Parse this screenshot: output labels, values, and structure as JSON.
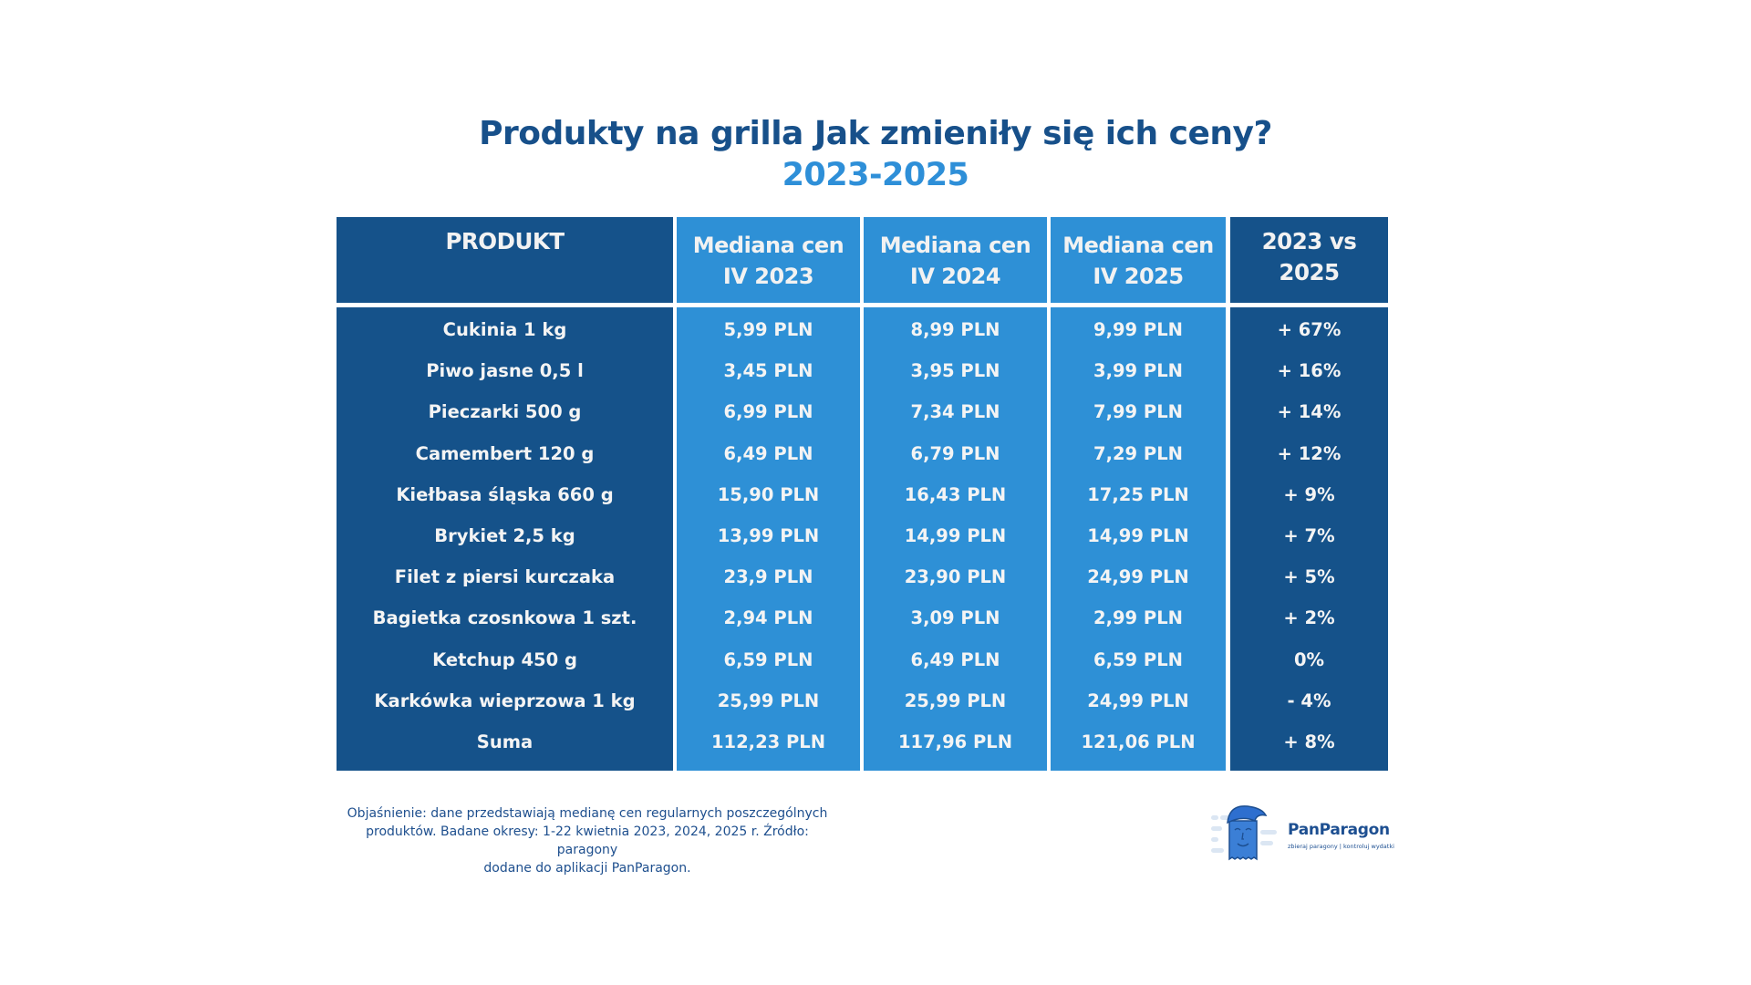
{
  "title": "Produkty na grilla Jak zmieniły się ich ceny?",
  "subtitle": "2023-2025",
  "colors": {
    "dark": "#15528a",
    "light": "#2e90d6",
    "title": "#17508a",
    "subtitle": "#2e8fd8"
  },
  "table": {
    "headers": [
      {
        "line1": "PRODUKT",
        "line2": ""
      },
      {
        "line1": "Mediana cen",
        "line2": "IV 2023"
      },
      {
        "line1": "Mediana cen",
        "line2": "IV 2024"
      },
      {
        "line1": "Mediana cen",
        "line2": "IV 2025"
      },
      {
        "line1": "2023 vs 2025",
        "line2": ""
      }
    ],
    "rows": [
      [
        "Cukinia 1 kg",
        "5,99 PLN",
        "8,99 PLN",
        "9,99 PLN",
        "+ 67%"
      ],
      [
        "Piwo jasne 0,5 l",
        "3,45 PLN",
        "3,95 PLN",
        "3,99 PLN",
        "+ 16%"
      ],
      [
        "Pieczarki 500 g",
        "6,99 PLN",
        "7,34 PLN",
        "7,99 PLN",
        "+ 14%"
      ],
      [
        "Camembert 120 g",
        "6,49 PLN",
        "6,79 PLN",
        "7,29 PLN",
        "+ 12%"
      ],
      [
        "Kiełbasa śląska 660 g",
        "15,90 PLN",
        "16,43 PLN",
        "17,25 PLN",
        "+ 9%"
      ],
      [
        "Brykiet 2,5 kg",
        "13,99 PLN",
        "14,99 PLN",
        "14,99 PLN",
        "+ 7%"
      ],
      [
        "Filet z piersi kurczaka",
        "23,9 PLN",
        "23,90 PLN",
        "24,99 PLN",
        "+ 5%"
      ],
      [
        "Bagietka czosnkowa 1 szt.",
        "2,94 PLN",
        "3,09 PLN",
        "2,99 PLN",
        "+ 2%"
      ],
      [
        "Ketchup 450 g",
        "6,59 PLN",
        "6,49 PLN",
        "6,59 PLN",
        "0%"
      ],
      [
        "Karkówka wieprzowa 1 kg",
        "25,99 PLN",
        "25,99 PLN",
        "24,99 PLN",
        "- 4%"
      ],
      [
        "Suma",
        "112,23 PLN",
        "117,96 PLN",
        "121,06 PLN",
        "+ 8%"
      ]
    ]
  },
  "footnote": {
    "line1": "Objaśnienie: dane przedstawiają medianę cen regularnych poszczególnych",
    "line2": "produktów. Badane okresy: 1-22 kwietnia 2023, 2024, 2025 r.  Źródło: paragony",
    "line3": "dodane do aplikacji PanParagon."
  },
  "logo": {
    "name": "PanParagon",
    "tagline": "zbieraj paragony | kontroluj wydatki",
    "icon": "receipt-mascot-icon"
  }
}
